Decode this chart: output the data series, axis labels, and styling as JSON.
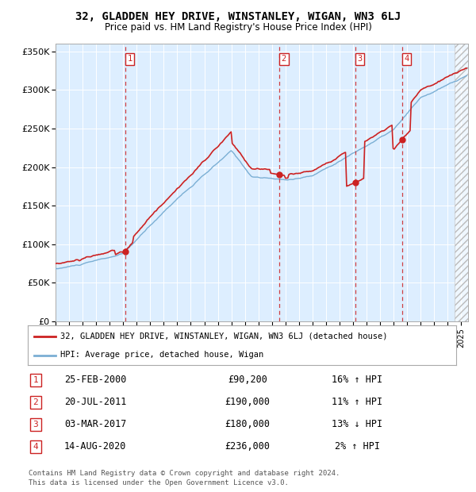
{
  "title": "32, GLADDEN HEY DRIVE, WINSTANLEY, WIGAN, WN3 6LJ",
  "subtitle": "Price paid vs. HM Land Registry's House Price Index (HPI)",
  "ylim": [
    0,
    360000
  ],
  "yticks": [
    0,
    50000,
    100000,
    150000,
    200000,
    250000,
    300000,
    350000
  ],
  "ytick_labels": [
    "£0",
    "£50K",
    "£100K",
    "£150K",
    "£200K",
    "£250K",
    "£300K",
    "£350K"
  ],
  "xlim_start": 1995.0,
  "xlim_end": 2025.5,
  "hpi_color": "#7bafd4",
  "price_color": "#cc2222",
  "bg_color": "#ddeeff",
  "sale_dates": [
    2000.15,
    2011.55,
    2017.17,
    2020.62
  ],
  "sale_prices": [
    90200,
    190000,
    180000,
    236000
  ],
  "sale_labels": [
    "1",
    "2",
    "3",
    "4"
  ],
  "sale_date_strs": [
    "25-FEB-2000",
    "20-JUL-2011",
    "03-MAR-2017",
    "14-AUG-2020"
  ],
  "sale_price_strs": [
    "£90,200",
    "£190,000",
    "£180,000",
    "£236,000"
  ],
  "sale_hpi_strs": [
    "16% ↑ HPI",
    "11% ↑ HPI",
    "13% ↓ HPI",
    "2% ↑ HPI"
  ],
  "footer": "Contains HM Land Registry data © Crown copyright and database right 2024.\nThis data is licensed under the Open Government Licence v3.0.",
  "legend_line1": "32, GLADDEN HEY DRIVE, WINSTANLEY, WIGAN, WN3 6LJ (detached house)",
  "legend_line2": "HPI: Average price, detached house, Wigan"
}
